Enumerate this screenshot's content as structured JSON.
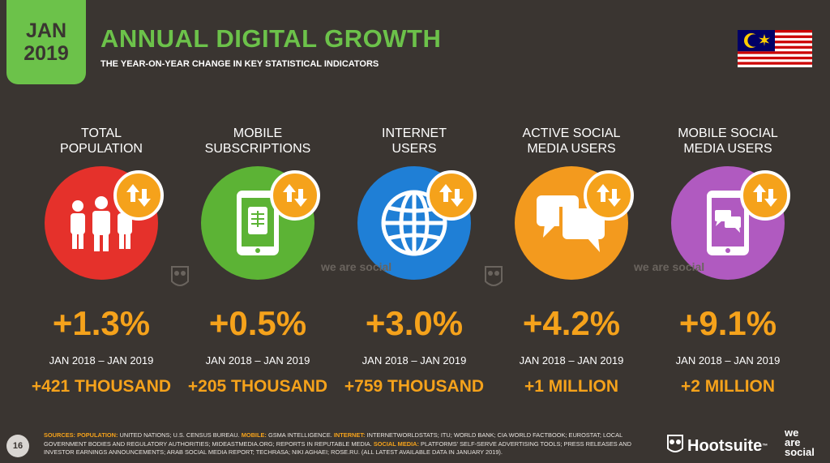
{
  "header": {
    "badge_line1": "JAN",
    "badge_line2": "2019",
    "title": "ANNUAL DIGITAL GROWTH",
    "subtitle": "THE YEAR-ON-YEAR CHANGE IN KEY STATISTICAL INDICATORS"
  },
  "colors": {
    "accent_green": "#6cc24a",
    "accent_orange": "#f5a21b",
    "red": "#e5312b",
    "green": "#5cb335",
    "blue": "#1f7fd6",
    "orange": "#f39a1e",
    "purple": "#b05ac0",
    "background": "#3a3531"
  },
  "stats": [
    {
      "label": "TOTAL POPULATION",
      "icon": "people-icon",
      "pct": "+1.3%",
      "period": "JAN 2018 – JAN 2019",
      "abs": "+421 THOUSAND"
    },
    {
      "label": "MOBILE SUBSCRIPTIONS",
      "icon": "mobile-sim-icon",
      "pct": "+0.5%",
      "period": "JAN 2018 – JAN 2019",
      "abs": "+205 THOUSAND"
    },
    {
      "label": "INTERNET USERS",
      "icon": "globe-icon",
      "pct": "+3.0%",
      "period": "JAN 2018 – JAN 2019",
      "abs": "+759 THOUSAND"
    },
    {
      "label": "ACTIVE SOCIAL MEDIA USERS",
      "icon": "chat-bubbles-icon",
      "pct": "+4.2%",
      "period": "JAN 2018 – JAN 2019",
      "abs": "+1 MILLION"
    },
    {
      "label": "MOBILE SOCIAL MEDIA USERS",
      "icon": "mobile-chat-icon",
      "pct": "+9.1%",
      "period": "JAN 2018 – JAN 2019",
      "abs": "+2 MILLION"
    }
  ],
  "watermark": {
    "text": "we are social"
  },
  "footer": {
    "page_number": "16",
    "sources_label": "SOURCES:",
    "src_population_label": "POPULATION:",
    "src_population": "UNITED NATIONS; U.S. CENSUS BUREAU.",
    "src_mobile_label": "MOBILE:",
    "src_mobile": "GSMA INTELLIGENCE.",
    "src_internet_label": "INTERNET:",
    "src_internet": "INTERNETWORLDSTATS; ITU; WORLD BANK; CIA WORLD FACTBOOK; EUROSTAT; LOCAL GOVERNMENT BODIES AND REGULATORY AUTHORITIES; MIDEASTMEDIA.ORG; REPORTS IN REPUTABLE MEDIA.",
    "src_social_label": "SOCIAL MEDIA:",
    "src_social": "PLATFORMS' SELF-SERVE ADVERTISING TOOLS; PRESS RELEASES AND INVESTOR EARNINGS ANNOUNCEMENTS; ARAB SOCIAL MEDIA REPORT; TECHRASA; NIKI AGHAEI; ROSE.RU. (ALL LATEST AVAILABLE DATA IN JANUARY 2019).",
    "hootsuite": "Hootsuite",
    "hootsuite_tm": "™",
    "wesocial_1": "we",
    "wesocial_2": "are",
    "wesocial_3": "social"
  }
}
